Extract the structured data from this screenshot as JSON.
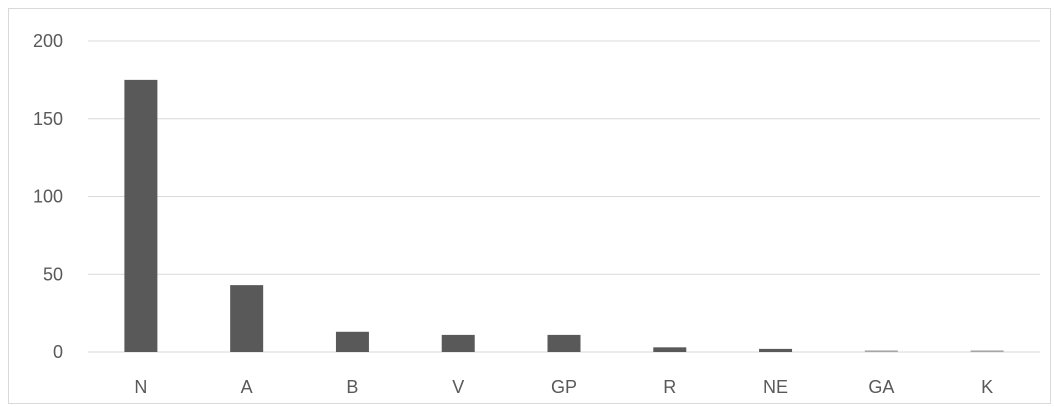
{
  "chart_data": {
    "type": "bar",
    "title": "",
    "xlabel": "",
    "ylabel": "",
    "categories": [
      "N",
      "A",
      "B",
      "V",
      "GP",
      "R",
      "NE",
      "GA",
      "K"
    ],
    "values": [
      175,
      43,
      13,
      11,
      11,
      3,
      2,
      1,
      1
    ],
    "ylim": [
      0,
      200
    ],
    "yticks": [
      "0",
      "50",
      "100",
      "150",
      "200"
    ],
    "grid": true,
    "legend": "none",
    "colors": {
      "bar": "#595959",
      "bar_small": "#a6a6a6",
      "grid": "#d9d9d9",
      "text": "#595959"
    }
  }
}
